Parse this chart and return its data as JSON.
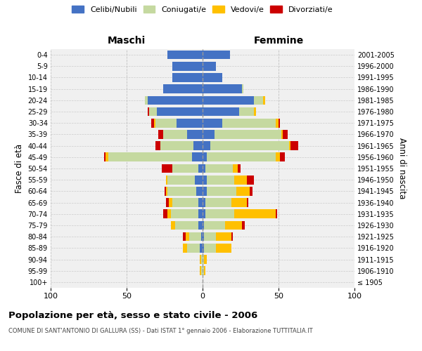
{
  "age_groups": [
    "100+",
    "95-99",
    "90-94",
    "85-89",
    "80-84",
    "75-79",
    "70-74",
    "65-69",
    "60-64",
    "55-59",
    "50-54",
    "45-49",
    "40-44",
    "35-39",
    "30-34",
    "25-29",
    "20-24",
    "15-19",
    "10-14",
    "5-9",
    "0-4"
  ],
  "birth_years": [
    "≤ 1905",
    "1906-1910",
    "1911-1915",
    "1916-1920",
    "1921-1925",
    "1926-1930",
    "1931-1935",
    "1936-1940",
    "1941-1945",
    "1946-1950",
    "1951-1955",
    "1956-1960",
    "1961-1965",
    "1966-1970",
    "1971-1975",
    "1976-1980",
    "1981-1985",
    "1986-1990",
    "1991-1995",
    "1996-2000",
    "2001-2005"
  ],
  "males": {
    "celibe": [
      0,
      0,
      0,
      2,
      1,
      3,
      3,
      3,
      4,
      5,
      3,
      7,
      6,
      10,
      17,
      30,
      36,
      26,
      20,
      20,
      23
    ],
    "coniugato": [
      0,
      1,
      1,
      8,
      8,
      15,
      18,
      17,
      19,
      18,
      17,
      55,
      22,
      16,
      14,
      5,
      2,
      0,
      0,
      0,
      0
    ],
    "vedovo": [
      0,
      1,
      1,
      3,
      2,
      3,
      2,
      2,
      1,
      1,
      0,
      2,
      0,
      0,
      1,
      0,
      0,
      0,
      0,
      0,
      0
    ],
    "divorziato": [
      0,
      0,
      0,
      0,
      2,
      0,
      3,
      2,
      1,
      0,
      7,
      1,
      3,
      3,
      2,
      1,
      0,
      0,
      0,
      0,
      0
    ]
  },
  "females": {
    "nubile": [
      0,
      0,
      0,
      1,
      1,
      1,
      2,
      2,
      3,
      3,
      2,
      3,
      5,
      8,
      13,
      24,
      34,
      26,
      13,
      9,
      18
    ],
    "coniugata": [
      0,
      1,
      1,
      8,
      8,
      14,
      19,
      17,
      19,
      18,
      18,
      45,
      52,
      44,
      35,
      10,
      6,
      1,
      0,
      0,
      0
    ],
    "vedova": [
      0,
      1,
      2,
      10,
      10,
      11,
      27,
      10,
      9,
      8,
      3,
      3,
      1,
      1,
      2,
      1,
      1,
      0,
      0,
      0,
      0
    ],
    "divorziata": [
      0,
      0,
      0,
      0,
      1,
      2,
      1,
      1,
      2,
      5,
      2,
      3,
      5,
      3,
      1,
      0,
      0,
      0,
      0,
      0,
      0
    ]
  },
  "colors": {
    "celibe": "#4472c4",
    "coniugato": "#c5d9a0",
    "vedovo": "#ffc000",
    "divorziato": "#cc0000"
  },
  "xlim": 100,
  "title": "Popolazione per età, sesso e stato civile - 2006",
  "subtitle": "COMUNE DI SANT'ANTONIO DI GALLURA (SS) - Dati ISTAT 1° gennaio 2006 - Elaborazione TUTTITALIA.IT",
  "xlabel_left": "Maschi",
  "xlabel_right": "Femmine",
  "ylabel_left": "Fasce di età",
  "ylabel_right": "Anni di nascita",
  "legend_labels": [
    "Celibi/Nubili",
    "Coniugati/e",
    "Vedovi/e",
    "Divorziati/e"
  ],
  "background_color": "#ffffff",
  "grid_color": "#bbbbbb"
}
